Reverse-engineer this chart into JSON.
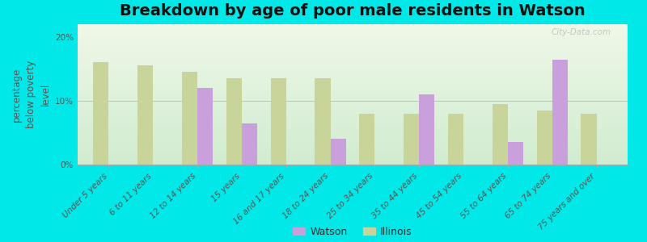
{
  "title": "Breakdown by age of poor male residents in Watson",
  "ylabel": "percentage\nbelow poverty\nlevel",
  "categories": [
    "Under 5 years",
    "6 to 11 years",
    "12 to 14 years",
    "15 years",
    "16 and 17 years",
    "18 to 24 years",
    "25 to 34 years",
    "35 to 44 years",
    "45 to 54 years",
    "55 to 64 years",
    "65 to 74 years",
    "75 years and over"
  ],
  "watson": [
    0,
    0,
    12.0,
    6.5,
    0,
    4.0,
    0,
    11.0,
    0,
    3.5,
    16.5,
    0
  ],
  "illinois": [
    16.0,
    15.5,
    14.5,
    13.5,
    13.5,
    13.5,
    8.0,
    8.0,
    8.0,
    9.5,
    8.5,
    8.0
  ],
  "watson_color": "#c9a0dc",
  "illinois_color": "#c8d49a",
  "background_top": "#f0f8e8",
  "background_bottom": "#d0ecd0",
  "outer_background": "#00e8e8",
  "title_color": "#111111",
  "ylim": [
    0,
    22
  ],
  "yticks": [
    0,
    10,
    20
  ],
  "ytick_labels": [
    "0%",
    "10%",
    "20%"
  ],
  "bar_width": 0.35,
  "title_fontsize": 14,
  "axis_label_fontsize": 8.5,
  "tick_fontsize": 7.5,
  "legend_fontsize": 9,
  "watermark": "City-Data.com"
}
